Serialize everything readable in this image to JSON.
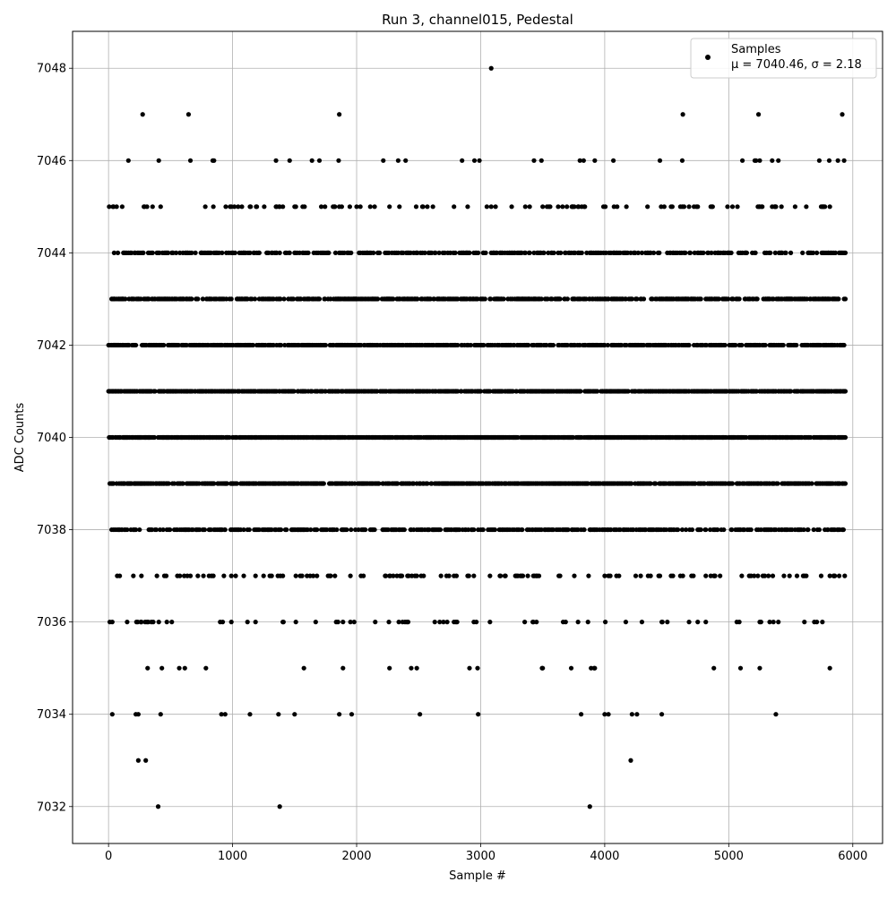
{
  "chart_data": {
    "type": "scatter",
    "title": "Run 3, channel015, Pedestal",
    "xlabel": "Sample #",
    "ylabel": "ADC Counts",
    "xlim": [
      -290,
      6240
    ],
    "ylim": [
      7031.2,
      7048.8
    ],
    "xticks": [
      0,
      1000,
      2000,
      3000,
      4000,
      5000,
      6000
    ],
    "yticks": [
      7032,
      7034,
      7036,
      7038,
      7040,
      7042,
      7044,
      7046,
      7048
    ],
    "grid": true,
    "legend": {
      "placement": "top-right",
      "entry": "Samples",
      "stats_text": "μ = 7040.46, σ = 2.18"
    },
    "series": [
      {
        "name": "Samples",
        "color": "#000000",
        "n_samples": 6000,
        "mean": 7040.46,
        "sigma": 2.18,
        "level_density": {
          "7032": 0.0005,
          "7033": 0.0005,
          "7034": 0.004,
          "7035": 0.015,
          "7036": 0.05,
          "7037": 0.12,
          "7038": 0.35,
          "7039": 0.55,
          "7040": 0.7,
          "7041": 0.6,
          "7042": 0.5,
          "7043": 0.45,
          "7044": 0.3,
          "7045": 0.08,
          "7046": 0.01,
          "7047": 0.003,
          "7048": 0.0003
        },
        "outliers": [
          {
            "x": 400,
            "y": 7032
          },
          {
            "x": 1380,
            "y": 7032
          },
          {
            "x": 3880,
            "y": 7032
          },
          {
            "x": 240,
            "y": 7033
          },
          {
            "x": 300,
            "y": 7033
          },
          {
            "x": 4210,
            "y": 7033
          },
          {
            "x": 275,
            "y": 7047
          },
          {
            "x": 645,
            "y": 7047
          },
          {
            "x": 1860,
            "y": 7047
          },
          {
            "x": 4630,
            "y": 7047
          },
          {
            "x": 5240,
            "y": 7047
          },
          {
            "x": 5915,
            "y": 7047
          },
          {
            "x": 3085,
            "y": 7048
          },
          {
            "x": 660,
            "y": 7046
          },
          {
            "x": 840,
            "y": 7046
          },
          {
            "x": 1350,
            "y": 7046
          },
          {
            "x": 1460,
            "y": 7046
          },
          {
            "x": 1640,
            "y": 7046
          },
          {
            "x": 1700,
            "y": 7046
          },
          {
            "x": 1855,
            "y": 7046
          },
          {
            "x": 2215,
            "y": 7046
          },
          {
            "x": 2335,
            "y": 7046
          },
          {
            "x": 2850,
            "y": 7046
          },
          {
            "x": 2950,
            "y": 7046
          },
          {
            "x": 2990,
            "y": 7046
          },
          {
            "x": 3430,
            "y": 7046
          },
          {
            "x": 3490,
            "y": 7046
          },
          {
            "x": 3800,
            "y": 7046
          },
          {
            "x": 3830,
            "y": 7046
          },
          {
            "x": 3920,
            "y": 7046
          },
          {
            "x": 5110,
            "y": 7046
          },
          {
            "x": 5220,
            "y": 7046
          },
          {
            "x": 5250,
            "y": 7046
          },
          {
            "x": 5350,
            "y": 7046
          },
          {
            "x": 5400,
            "y": 7046
          },
          {
            "x": 5730,
            "y": 7046
          },
          {
            "x": 5810,
            "y": 7046
          },
          {
            "x": 5880,
            "y": 7046
          },
          {
            "x": 5930,
            "y": 7046
          },
          {
            "x": 30,
            "y": 7034
          },
          {
            "x": 220,
            "y": 7034
          },
          {
            "x": 240,
            "y": 7034
          },
          {
            "x": 420,
            "y": 7034
          },
          {
            "x": 910,
            "y": 7034
          },
          {
            "x": 940,
            "y": 7034
          },
          {
            "x": 1140,
            "y": 7034
          },
          {
            "x": 1370,
            "y": 7034
          },
          {
            "x": 1500,
            "y": 7034
          },
          {
            "x": 1860,
            "y": 7034
          },
          {
            "x": 1960,
            "y": 7034
          },
          {
            "x": 2510,
            "y": 7034
          },
          {
            "x": 2980,
            "y": 7034
          },
          {
            "x": 3810,
            "y": 7034
          },
          {
            "x": 4000,
            "y": 7034
          },
          {
            "x": 4030,
            "y": 7034
          },
          {
            "x": 4220,
            "y": 7034
          },
          {
            "x": 4260,
            "y": 7034
          },
          {
            "x": 4460,
            "y": 7034
          },
          {
            "x": 5380,
            "y": 7034
          }
        ]
      }
    ]
  }
}
